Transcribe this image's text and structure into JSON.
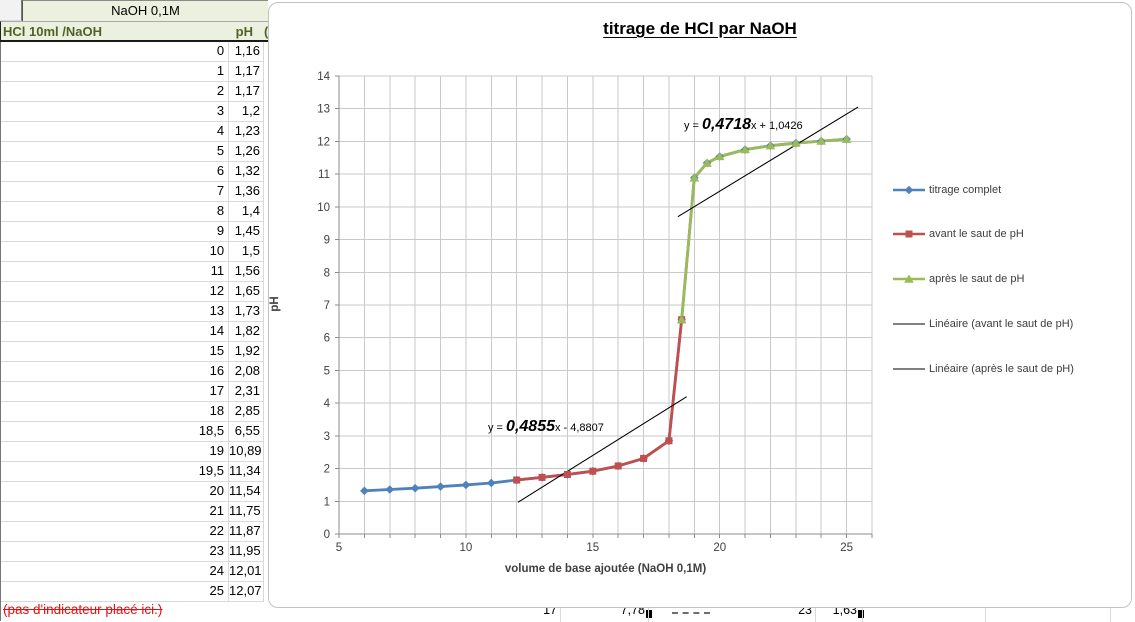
{
  "spreadsheet": {
    "title_cell": "NaOH  0,1M",
    "col_headers": {
      "left": "HCl 10ml /NaOH",
      "right": "pH",
      "hidden_fragment": "("
    },
    "rows": [
      [
        "0",
        "1,16"
      ],
      [
        "1",
        "1,17"
      ],
      [
        "2",
        "1,17"
      ],
      [
        "3",
        "1,2"
      ],
      [
        "4",
        "1,23"
      ],
      [
        "5",
        "1,26"
      ],
      [
        "6",
        "1,32"
      ],
      [
        "7",
        "1,36"
      ],
      [
        "8",
        "1,4"
      ],
      [
        "9",
        "1,45"
      ],
      [
        "10",
        "1,5"
      ],
      [
        "11",
        "1,56"
      ],
      [
        "12",
        "1,65"
      ],
      [
        "13",
        "1,73"
      ],
      [
        "14",
        "1,82"
      ],
      [
        "15",
        "1,92"
      ],
      [
        "16",
        "2,08"
      ],
      [
        "17",
        "2,31"
      ],
      [
        "18",
        "2,85"
      ],
      [
        "18,5",
        "6,55"
      ],
      [
        "19",
        "10,89"
      ],
      [
        "19,5",
        "11,34"
      ],
      [
        "20",
        "11,54"
      ],
      [
        "21",
        "11,75"
      ],
      [
        "22",
        "11,87"
      ],
      [
        "23",
        "11,95"
      ],
      [
        "24",
        "12,01"
      ],
      [
        "25",
        "12,07"
      ]
    ],
    "footnote": "(pas d'indicateur placé ici.)",
    "partial_row_fragments": [
      "17",
      "7,78",
      "23",
      "1,63"
    ]
  },
  "chart_data": {
    "type": "line",
    "title": "titrage de HCl par NaOH",
    "xlabel": "volume  de base ajoutée (NaOH 0,1M)",
    "ylabel": "pH",
    "xlim": [
      5,
      26
    ],
    "ylim": [
      0,
      14
    ],
    "x_major_ticks": [
      5,
      10,
      15,
      20,
      25
    ],
    "x_minor_unit": 1,
    "y_unit": 1,
    "grid": true,
    "legend_position": "right",
    "series": [
      {
        "name": "titrage complet",
        "color": "#4f81bd",
        "marker": "diamond",
        "x": [
          0,
          1,
          2,
          3,
          4,
          5,
          6,
          7,
          8,
          9,
          10,
          11,
          12,
          13,
          14,
          15,
          16,
          17,
          18,
          18.5,
          19,
          19.5,
          20,
          21,
          22,
          23,
          24,
          25
        ],
        "y": [
          1.16,
          1.17,
          1.17,
          1.2,
          1.23,
          1.26,
          1.32,
          1.36,
          1.4,
          1.45,
          1.5,
          1.56,
          1.65,
          1.73,
          1.82,
          1.92,
          2.08,
          2.31,
          2.85,
          6.55,
          10.89,
          11.34,
          11.54,
          11.75,
          11.87,
          11.95,
          12.01,
          12.07
        ]
      },
      {
        "name": "avant le saut de pH",
        "color": "#c0504d",
        "marker": "square",
        "x": [
          12,
          13,
          14,
          15,
          16,
          17,
          18,
          18.5
        ],
        "y": [
          1.65,
          1.73,
          1.82,
          1.92,
          2.08,
          2.31,
          2.85,
          6.55
        ]
      },
      {
        "name": "après le saut de pH",
        "color": "#9bbb59",
        "marker": "triangle",
        "x": [
          18.5,
          19,
          19.5,
          20,
          21,
          22,
          23,
          24,
          25
        ],
        "y": [
          6.55,
          10.89,
          11.34,
          11.54,
          11.75,
          11.87,
          11.95,
          12.01,
          12.07
        ]
      }
    ],
    "trendlines": [
      {
        "name": "Linéaire (avant le saut de pH)",
        "slope": 0.4855,
        "intercept": -4.8807,
        "x_range": [
          12.05,
          18.7
        ],
        "color": "#000000",
        "equation": {
          "prefix": "y = ",
          "slope_text": "0,4855",
          "suffix": "x - 4,8807"
        }
      },
      {
        "name": "Linéaire (après le saut de pH)",
        "slope": 0.4718,
        "intercept": 1.0426,
        "x_range": [
          18.35,
          25.45
        ],
        "color": "#000000",
        "equation": {
          "prefix": "y = ",
          "slope_text": "0,4718",
          "suffix": "x + 1,0426"
        }
      }
    ]
  },
  "colors": {
    "header_fill": "#ebf1de",
    "header_text": "#4f6228",
    "grid_line": "#c9c9c9",
    "axis_line": "#8c8c8c",
    "tick_text": "#404040",
    "footnote_red": "#e01212"
  }
}
